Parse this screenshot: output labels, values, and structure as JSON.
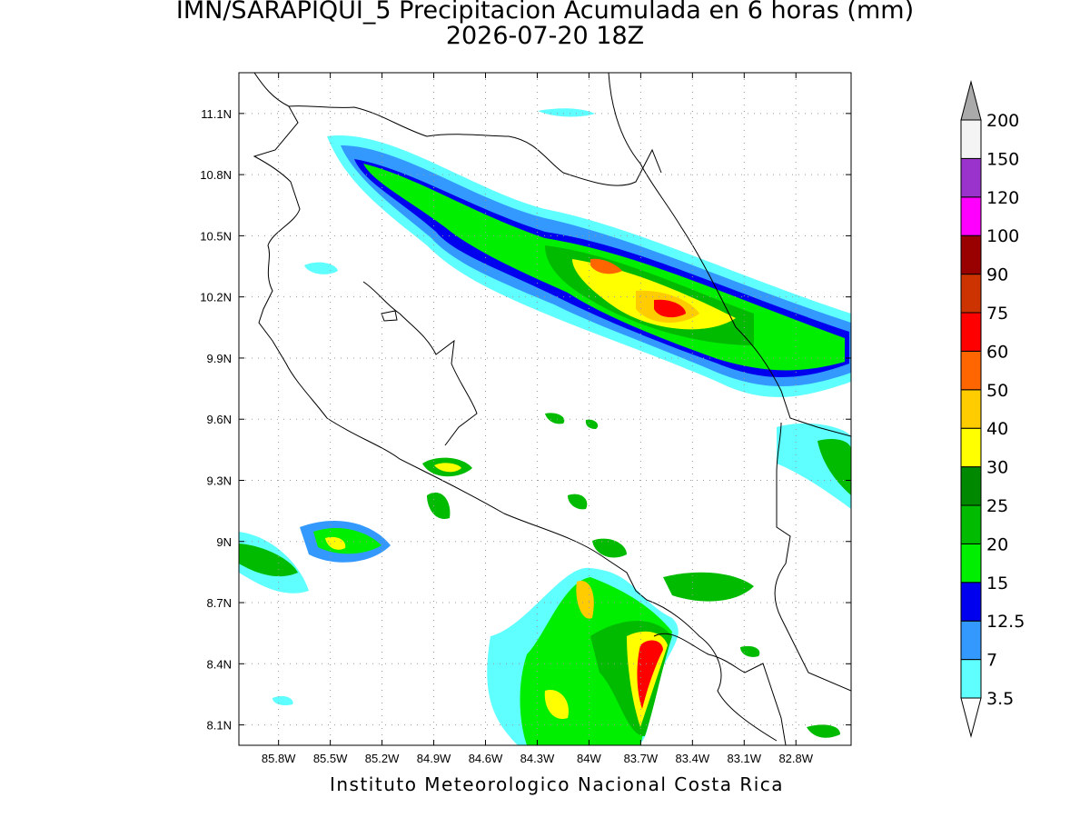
{
  "title": "IMN/SARAPIQUI_5 Precipitacion Acumulada en 6 horas (mm)",
  "subtitle": "2026-07-20 18Z",
  "footer": "Instituto Meteorologico Nacional Costa Rica",
  "map": {
    "xlim": [
      -86.03,
      -82.48
    ],
    "ylim": [
      8.0,
      11.3
    ],
    "xticks": [
      {
        "value": -85.8,
        "label": "85.8W"
      },
      {
        "value": -85.5,
        "label": "85.5W"
      },
      {
        "value": -85.2,
        "label": "85.2W"
      },
      {
        "value": -84.9,
        "label": "84.9W"
      },
      {
        "value": -84.6,
        "label": "84.6W"
      },
      {
        "value": -84.3,
        "label": "84.3W"
      },
      {
        "value": -84.0,
        "label": "84W"
      },
      {
        "value": -83.7,
        "label": "83.7W"
      },
      {
        "value": -83.4,
        "label": "83.4W"
      },
      {
        "value": -83.1,
        "label": "83.1W"
      },
      {
        "value": -82.8,
        "label": "82.8W"
      }
    ],
    "yticks": [
      {
        "value": 8.1,
        "label": "8.1N"
      },
      {
        "value": 8.4,
        "label": "8.4N"
      },
      {
        "value": 8.7,
        "label": "8.7N"
      },
      {
        "value": 9.0,
        "label": "9N"
      },
      {
        "value": 9.3,
        "label": "9.3N"
      },
      {
        "value": 9.6,
        "label": "9.6N"
      },
      {
        "value": 9.9,
        "label": "9.9N"
      },
      {
        "value": 10.2,
        "label": "10.2N"
      },
      {
        "value": 10.5,
        "label": "10.5N"
      },
      {
        "value": 10.8,
        "label": "10.8N"
      },
      {
        "value": 11.1,
        "label": "11.1N"
      }
    ],
    "grid": true
  },
  "colorbar": {
    "levels": [
      3.5,
      7,
      12.5,
      15,
      20,
      25,
      30,
      40,
      50,
      60,
      75,
      90,
      100,
      120,
      150,
      200
    ],
    "colors": [
      "#ffffff",
      "#5fffff",
      "#3399ff",
      "#0000ee",
      "#00ee00",
      "#00bb00",
      "#008800",
      "#ffff00",
      "#ffcc00",
      "#ff6600",
      "#ff0000",
      "#cc3300",
      "#990000",
      "#ff00ff",
      "#9933cc",
      "#f4f4f4",
      "#aaaaaa"
    ]
  }
}
